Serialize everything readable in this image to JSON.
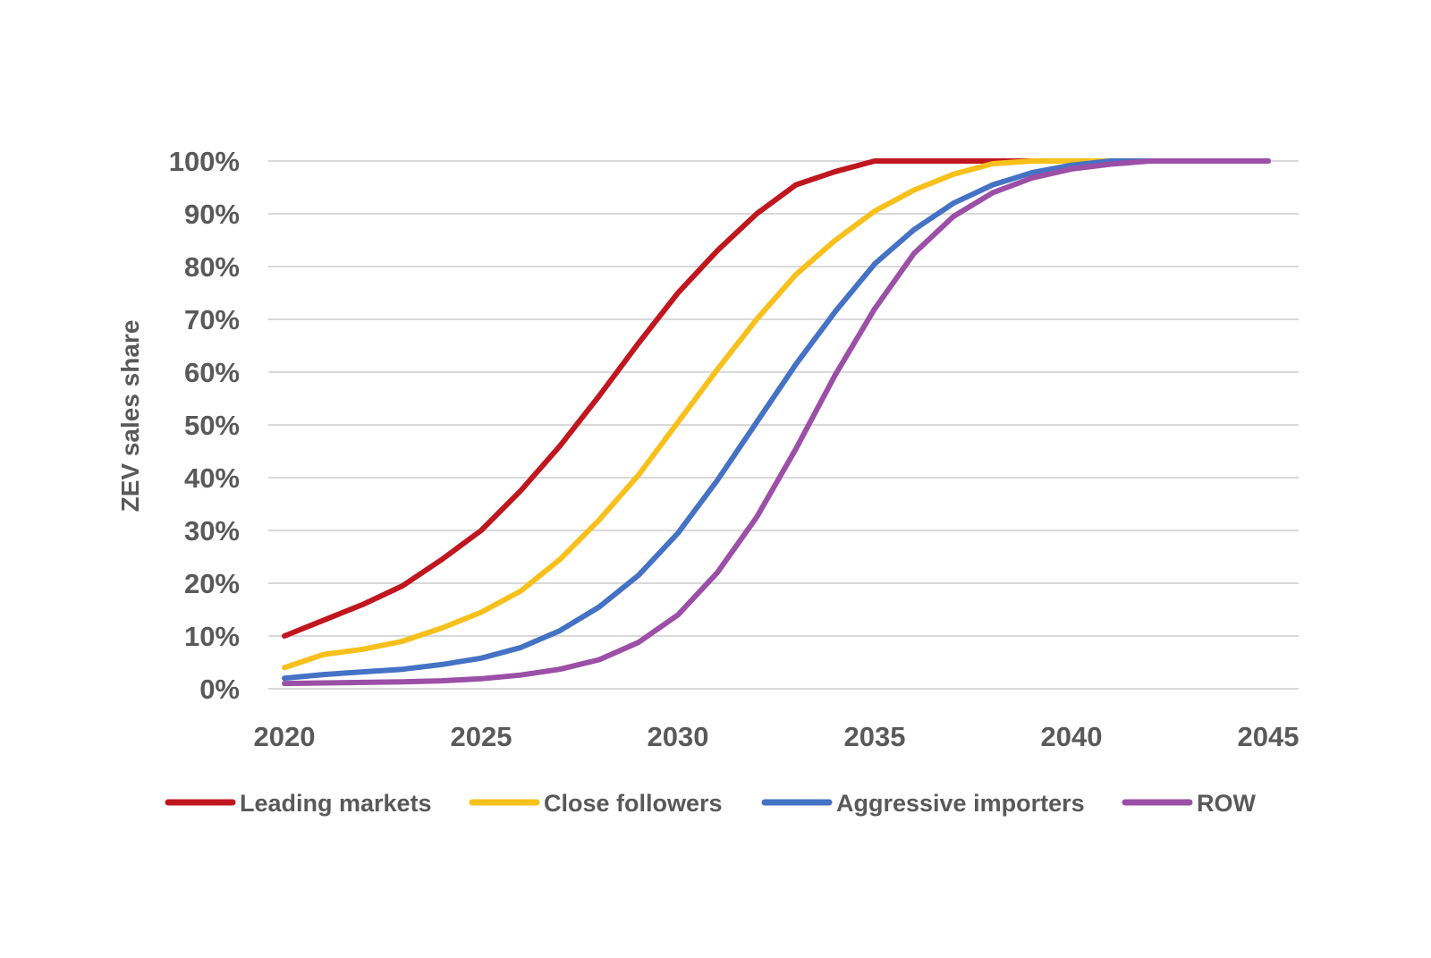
{
  "chart_data": {
    "type": "line",
    "ylabel": "ZEV sales share",
    "xlabel": "",
    "title": "",
    "x": [
      2020,
      2021,
      2022,
      2023,
      2024,
      2025,
      2026,
      2027,
      2028,
      2029,
      2030,
      2031,
      2032,
      2033,
      2034,
      2035,
      2036,
      2037,
      2038,
      2039,
      2040,
      2041,
      2042,
      2043,
      2044,
      2045
    ],
    "xlim": [
      2020,
      2045
    ],
    "ylim": [
      0,
      100
    ],
    "x_ticks": [
      2020,
      2025,
      2030,
      2035,
      2040,
      2045
    ],
    "x_tick_labels": [
      "2020",
      "2025",
      "2030",
      "2035",
      "2040",
      "2045"
    ],
    "y_ticks": [
      0,
      10,
      20,
      30,
      40,
      50,
      60,
      70,
      80,
      90,
      100
    ],
    "y_tick_labels": [
      "0%",
      "10%",
      "20%",
      "30%",
      "40%",
      "50%",
      "60%",
      "70%",
      "80%",
      "90%",
      "100%"
    ],
    "grid": "horizontal",
    "legend_position": "bottom",
    "series": [
      {
        "name": "Leading markets",
        "color": "#C0161E",
        "values": [
          10,
          13,
          16,
          19.5,
          24.5,
          30,
          37.5,
          46,
          55.5,
          65.5,
          75,
          83,
          90,
          95.5,
          98,
          100,
          100,
          100,
          100,
          100,
          100,
          100,
          100,
          100,
          100,
          100
        ]
      },
      {
        "name": "Close followers",
        "color": "#F7C01B",
        "values": [
          4,
          6.5,
          7.5,
          9,
          11.5,
          14.5,
          18.5,
          24.5,
          32,
          40.5,
          50.5,
          60.5,
          70,
          78.5,
          85,
          90.5,
          94.5,
          97.5,
          99.5,
          100,
          100,
          100,
          100,
          100,
          100,
          100
        ]
      },
      {
        "name": "Aggressive importers",
        "color": "#4472C4",
        "values": [
          2,
          2.7,
          3.2,
          3.7,
          4.6,
          5.8,
          7.8,
          11,
          15.5,
          21.5,
          29.5,
          39.5,
          50.5,
          61.5,
          71.5,
          80.5,
          87,
          92,
          95.5,
          97.8,
          99.2,
          100,
          100,
          100,
          100,
          100
        ]
      },
      {
        "name": "ROW",
        "color": "#9B4FA6",
        "values": [
          1,
          1.1,
          1.2,
          1.3,
          1.5,
          1.9,
          2.6,
          3.7,
          5.5,
          8.8,
          14,
          22,
          32.5,
          45.5,
          59.5,
          72,
          82.5,
          89.5,
          94,
          96.8,
          98.5,
          99.4,
          100,
          100,
          100,
          100
        ]
      }
    ]
  }
}
